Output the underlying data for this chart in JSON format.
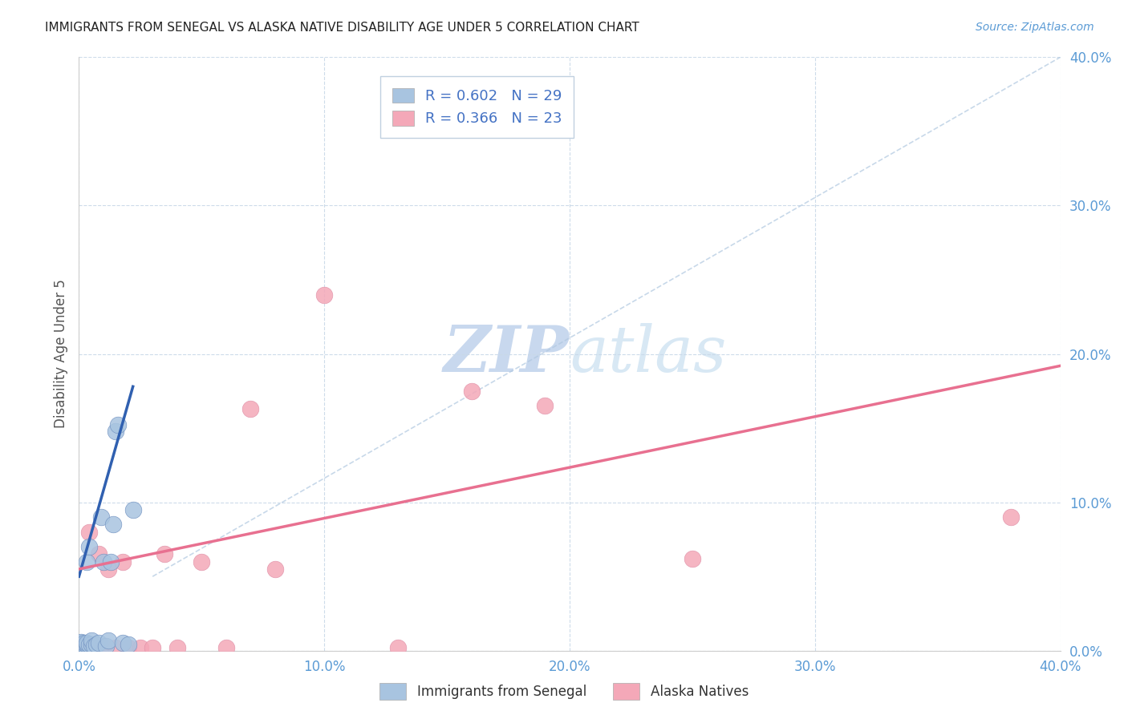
{
  "title": "IMMIGRANTS FROM SENEGAL VS ALASKA NATIVE DISABILITY AGE UNDER 5 CORRELATION CHART",
  "source": "Source: ZipAtlas.com",
  "ylabel": "Disability Age Under 5",
  "xlim": [
    0.0,
    0.4
  ],
  "ylim": [
    0.0,
    0.4
  ],
  "xticks": [
    0.0,
    0.1,
    0.2,
    0.3,
    0.4
  ],
  "yticks": [
    0.0,
    0.1,
    0.2,
    0.3,
    0.4
  ],
  "xtick_labels": [
    "0.0%",
    "10.0%",
    "20.0%",
    "30.0%",
    "40.0%"
  ],
  "ytick_labels_right": [
    "0.0%",
    "10.0%",
    "20.0%",
    "30.0%",
    "40.0%"
  ],
  "legend_labels": [
    "Immigrants from Senegal",
    "Alaska Natives"
  ],
  "r_blue": 0.602,
  "n_blue": 29,
  "r_pink": 0.366,
  "n_pink": 23,
  "blue_color": "#a8c4e0",
  "pink_color": "#f4a8b8",
  "blue_line_color": "#3060b0",
  "pink_line_color": "#e87090",
  "blue_edge_color": "#7090c0",
  "pink_edge_color": "#e090a8",
  "tick_color": "#5b9bd5",
  "watermark_color": "#dce9f5",
  "blue_scatter_x": [
    0.001,
    0.001,
    0.001,
    0.001,
    0.001,
    0.002,
    0.002,
    0.002,
    0.003,
    0.003,
    0.003,
    0.004,
    0.004,
    0.005,
    0.005,
    0.006,
    0.007,
    0.008,
    0.009,
    0.01,
    0.011,
    0.012,
    0.013,
    0.014,
    0.015,
    0.016,
    0.018,
    0.02,
    0.022
  ],
  "blue_scatter_y": [
    0.002,
    0.003,
    0.004,
    0.005,
    0.006,
    0.003,
    0.004,
    0.005,
    0.004,
    0.005,
    0.06,
    0.004,
    0.07,
    0.004,
    0.007,
    0.003,
    0.004,
    0.005,
    0.09,
    0.06,
    0.003,
    0.007,
    0.06,
    0.085,
    0.148,
    0.152,
    0.005,
    0.004,
    0.095
  ],
  "pink_scatter_x": [
    0.003,
    0.004,
    0.006,
    0.008,
    0.01,
    0.012,
    0.015,
    0.018,
    0.02,
    0.025,
    0.03,
    0.035,
    0.04,
    0.05,
    0.06,
    0.07,
    0.08,
    0.1,
    0.13,
    0.16,
    0.19,
    0.25,
    0.38
  ],
  "pink_scatter_y": [
    0.002,
    0.08,
    0.003,
    0.065,
    0.003,
    0.055,
    0.002,
    0.06,
    0.002,
    0.002,
    0.002,
    0.065,
    0.002,
    0.06,
    0.002,
    0.163,
    0.055,
    0.24,
    0.002,
    0.175,
    0.165,
    0.062,
    0.09
  ],
  "blue_line_x": [
    0.0,
    0.022
  ],
  "blue_line_y_start": 0.05,
  "blue_line_y_end": 0.178,
  "pink_line_x": [
    0.0,
    0.4
  ],
  "pink_line_y_start": 0.055,
  "pink_line_y_end": 0.192,
  "dash_line_x": [
    0.03,
    0.4
  ],
  "dash_line_y": [
    0.05,
    0.4
  ]
}
